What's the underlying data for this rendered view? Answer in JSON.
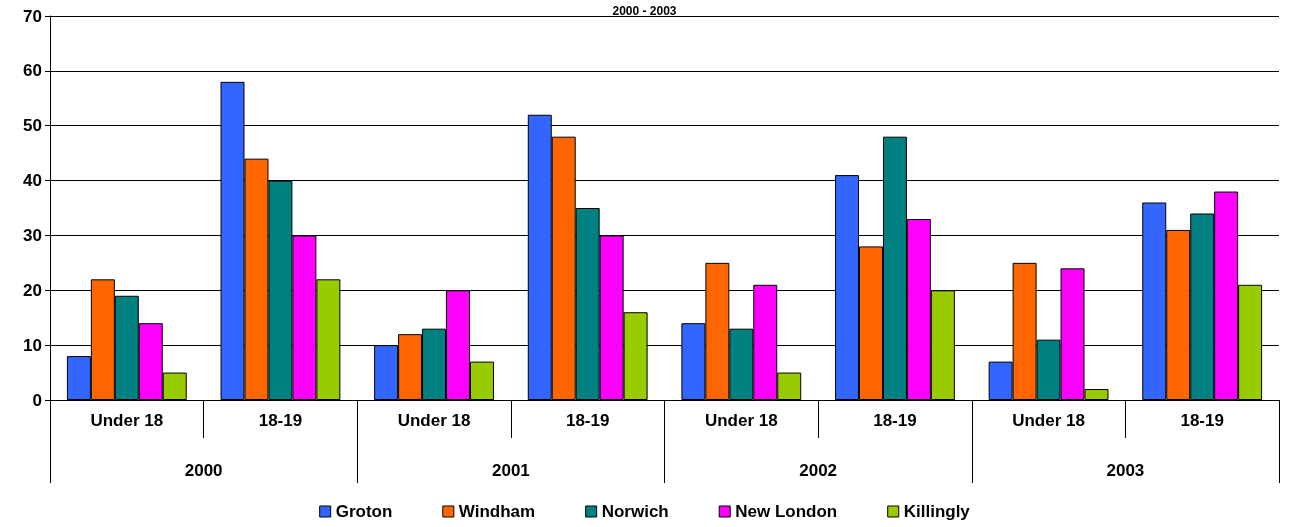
{
  "chart_data": {
    "type": "bar",
    "title": "2000 - 2003",
    "categories": [
      "Under 18",
      "18-19",
      "Under 18",
      "18-19",
      "Under 18",
      "18-19",
      "Under 18",
      "18-19"
    ],
    "annotations": [
      "2000",
      "2001",
      "2002",
      "2003"
    ],
    "series": [
      {
        "name": "Groton",
        "color": "#3366ff",
        "values": [
          8,
          58,
          10,
          52,
          14,
          41,
          7,
          36
        ]
      },
      {
        "name": "Windham",
        "color": "#ff6600",
        "values": [
          22,
          44,
          12,
          48,
          25,
          28,
          25,
          31
        ]
      },
      {
        "name": "Norwich",
        "color": "#008080",
        "values": [
          19,
          40,
          13,
          35,
          13,
          48,
          11,
          34
        ]
      },
      {
        "name": "New London",
        "color": "#ff00ff",
        "values": [
          14,
          30,
          20,
          30,
          21,
          33,
          24,
          38
        ]
      },
      {
        "name": "Killingly",
        "color": "#99cc00",
        "values": [
          5,
          22,
          7,
          16,
          5,
          20,
          2,
          21
        ]
      }
    ],
    "ylim": [
      0,
      70
    ],
    "yticks": [
      0,
      10,
      20,
      30,
      40,
      50,
      60,
      70
    ],
    "grid": "y",
    "legend": "bottom"
  }
}
